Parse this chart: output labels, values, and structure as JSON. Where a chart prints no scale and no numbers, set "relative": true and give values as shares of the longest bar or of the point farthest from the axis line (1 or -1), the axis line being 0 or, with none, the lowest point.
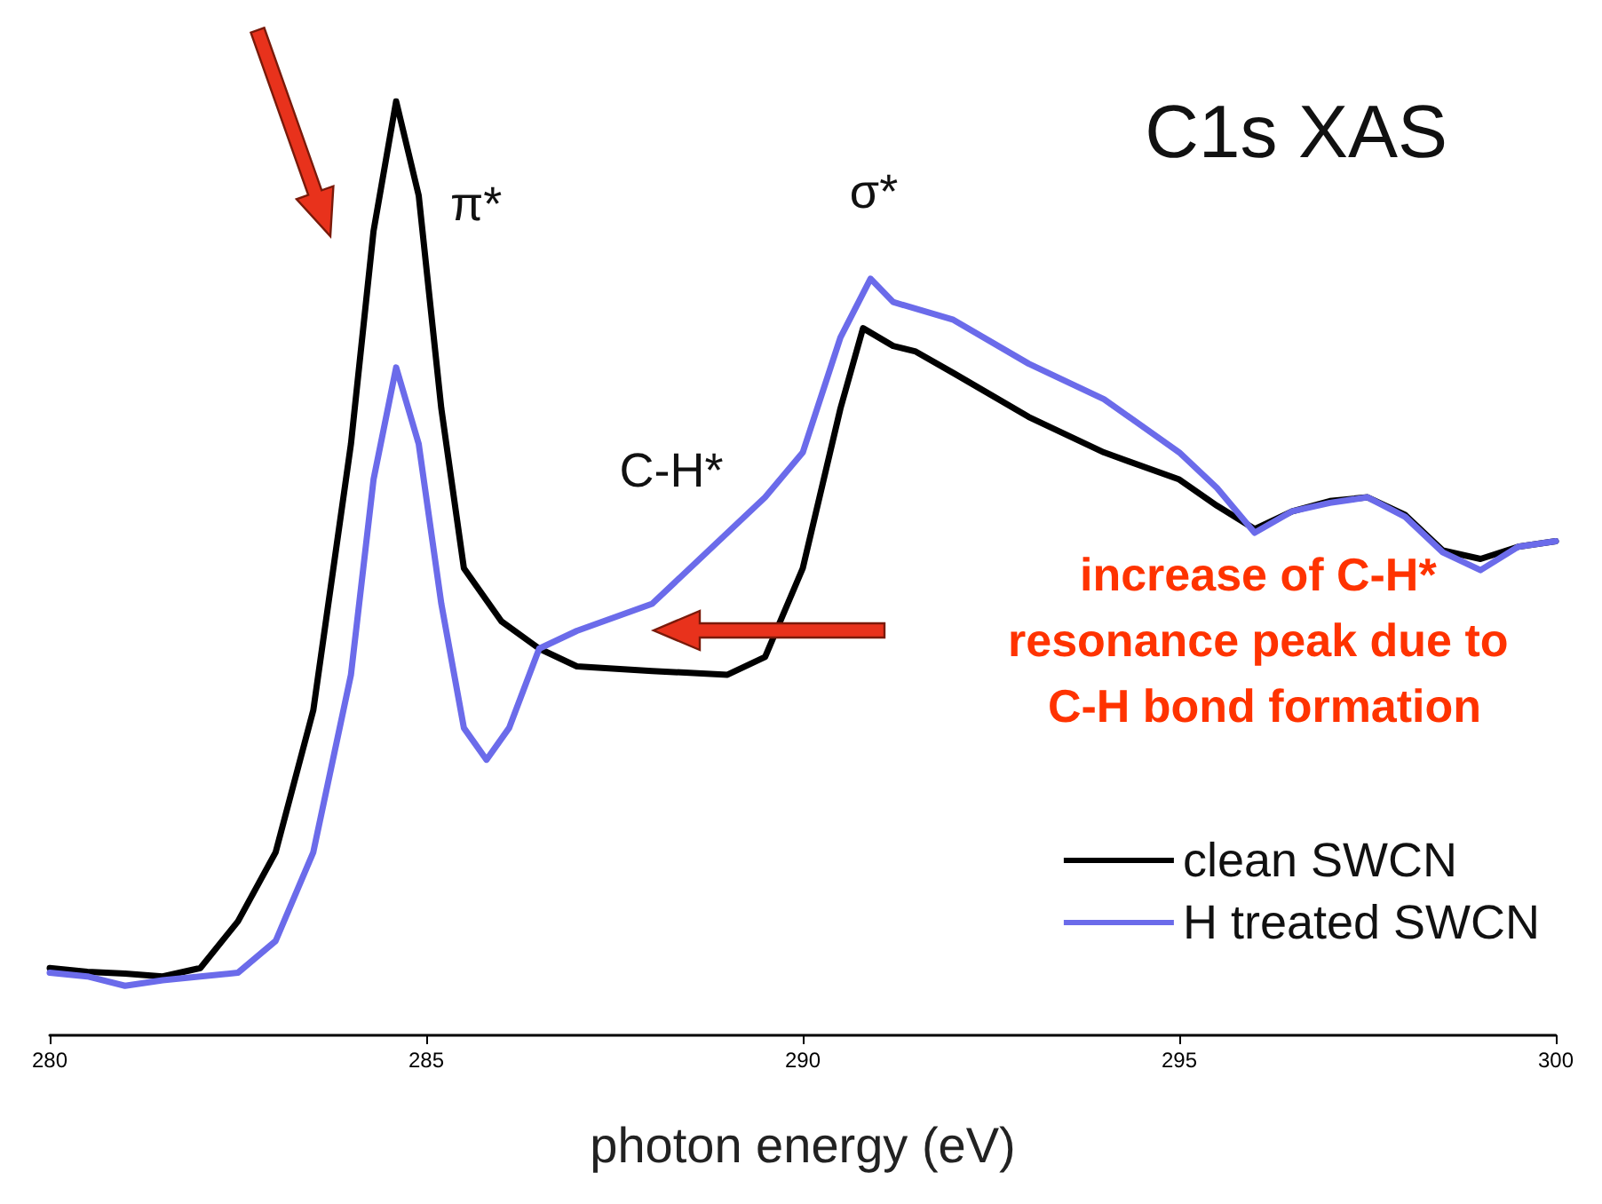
{
  "chart_data": {
    "type": "line",
    "title": "C1s XAS",
    "xlabel": "photon energy (eV)",
    "relative": true,
    "xlim": [
      280,
      300
    ],
    "xticks": [
      280,
      285,
      290,
      295,
      300
    ],
    "tick_labels": "x",
    "grid": false,
    "legend": "bottom right",
    "marker": "none",
    "line_style": "solid",
    "annotations": [
      "π*",
      "σ*",
      "C-H*",
      "increase of C-H* resonance peak due to C-H bond formation"
    ],
    "series": [
      {
        "name": "clean SWCN",
        "color": "#000000",
        "x": [
          280,
          280.5,
          281,
          281.5,
          282,
          282.5,
          283,
          283.5,
          284,
          284.3,
          284.6,
          284.9,
          285.2,
          285.5,
          286,
          286.5,
          287,
          288,
          289,
          289.5,
          290,
          290.5,
          290.8,
          291.2,
          291.5,
          292,
          293,
          294,
          295,
          295.5,
          296,
          296.5,
          297,
          297.5,
          298,
          298.5,
          299,
          299.5,
          300
        ],
        "values": [
          0.072,
          0.068,
          0.066,
          0.063,
          0.072,
          0.122,
          0.196,
          0.348,
          0.633,
          0.861,
          1.0,
          0.899,
          0.671,
          0.5,
          0.443,
          0.414,
          0.395,
          0.39,
          0.386,
          0.405,
          0.5,
          0.671,
          0.757,
          0.738,
          0.732,
          0.709,
          0.662,
          0.624,
          0.595,
          0.567,
          0.542,
          0.561,
          0.572,
          0.576,
          0.557,
          0.519,
          0.51,
          0.523,
          0.529
        ]
      },
      {
        "name": "H treated SWCN",
        "color": "#6b6bea",
        "x": [
          280,
          280.5,
          281,
          281.5,
          282,
          282.5,
          283,
          283.5,
          284,
          284.3,
          284.6,
          284.9,
          285.2,
          285.5,
          285.8,
          286.1,
          286.5,
          287,
          288,
          289,
          289.5,
          290,
          290.5,
          290.9,
          291.2,
          292,
          293,
          294,
          295,
          295.5,
          296,
          296.5,
          297,
          297.5,
          298,
          298.5,
          299,
          299.5,
          300
        ],
        "values": [
          0.067,
          0.063,
          0.053,
          0.059,
          0.063,
          0.067,
          0.101,
          0.196,
          0.386,
          0.595,
          0.715,
          0.633,
          0.462,
          0.329,
          0.295,
          0.329,
          0.414,
          0.433,
          0.462,
          0.538,
          0.576,
          0.624,
          0.747,
          0.81,
          0.785,
          0.766,
          0.719,
          0.681,
          0.624,
          0.586,
          0.538,
          0.561,
          0.57,
          0.576,
          0.555,
          0.517,
          0.498,
          0.523,
          0.529
        ]
      }
    ]
  }
}
